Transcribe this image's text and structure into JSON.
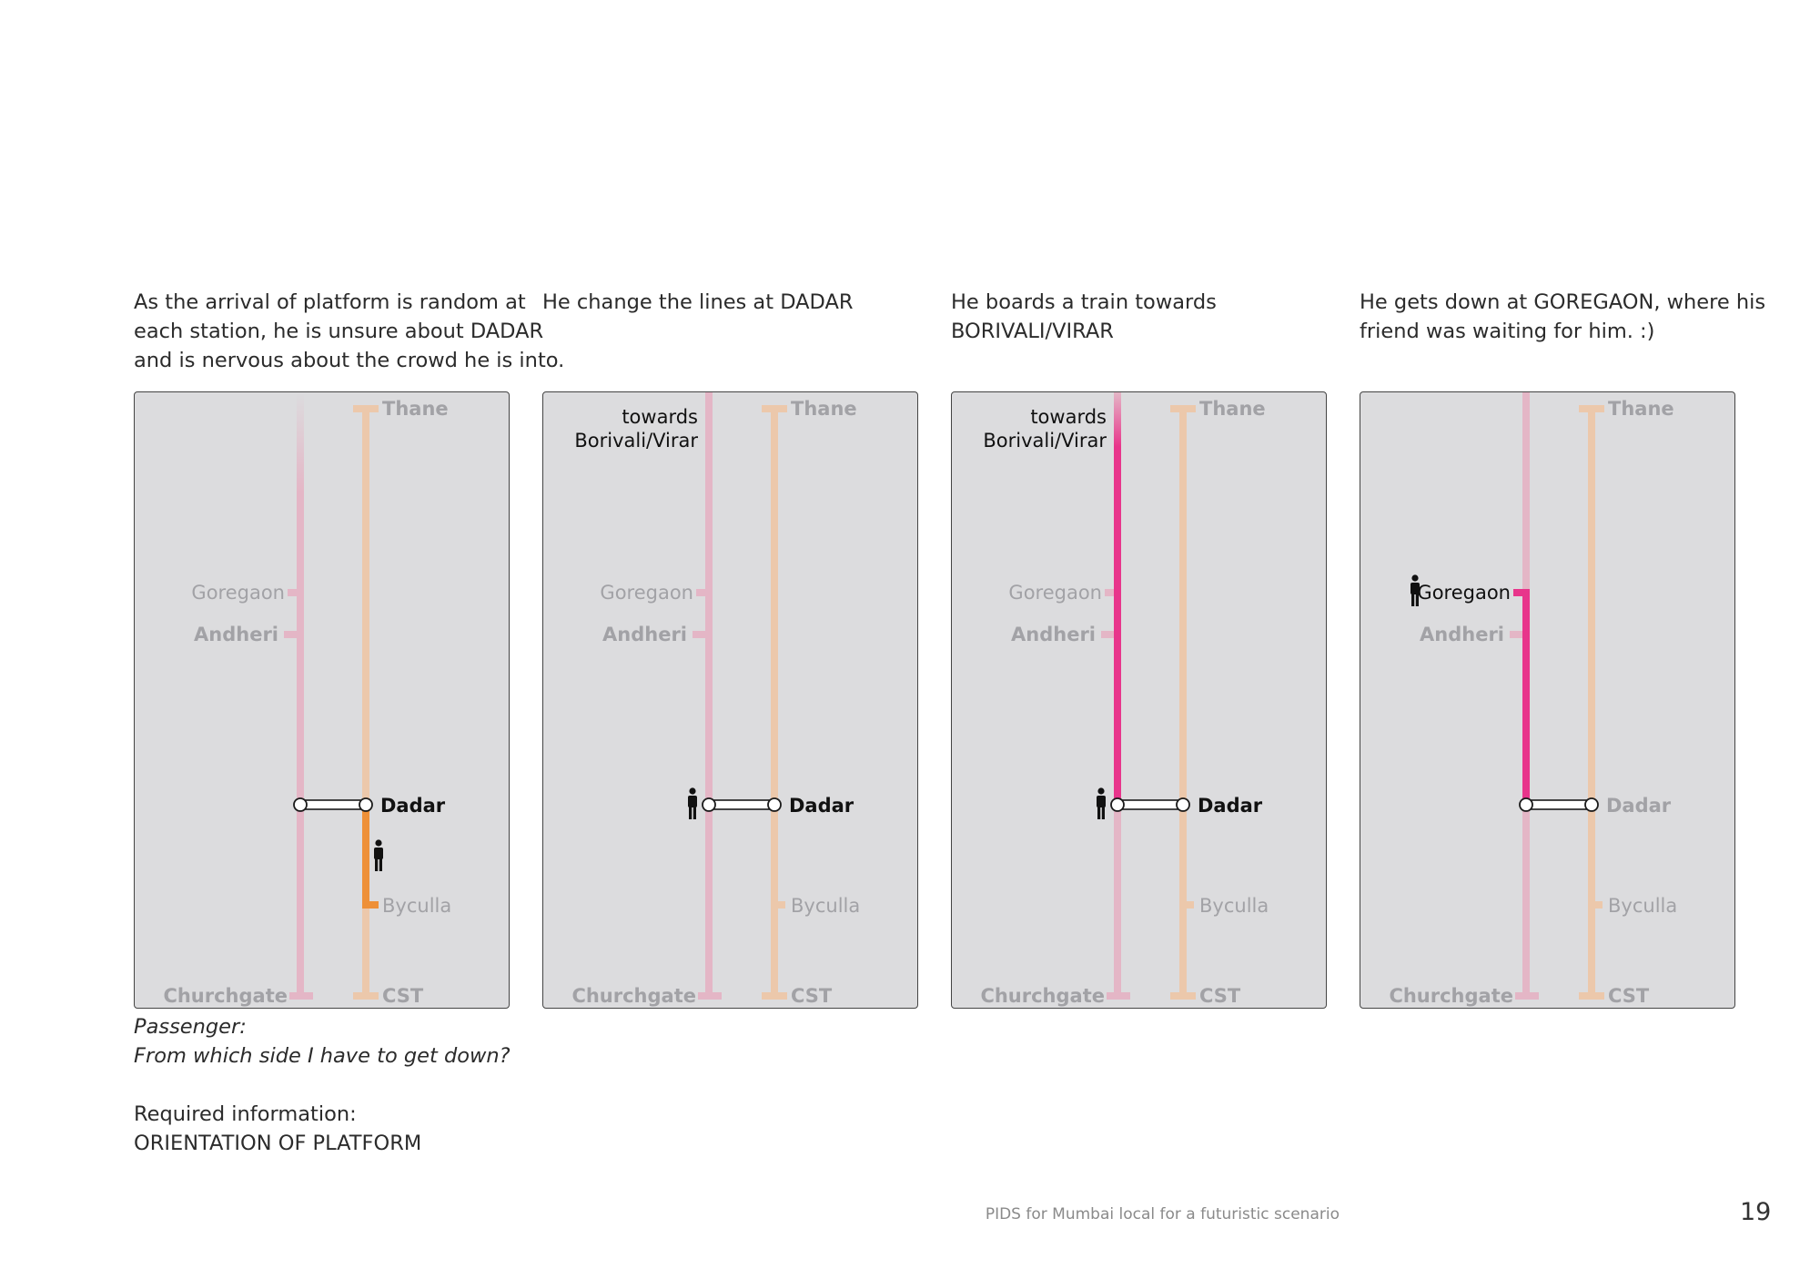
{
  "captions": [
    {
      "lines": [
        "As the arrival of platform is random at",
        "each station, he is unsure about DADAR",
        "and is nervous about the crowd he is into."
      ]
    },
    {
      "lines": [
        "He change the lines at DADAR"
      ]
    },
    {
      "lines": [
        "He boards a train towards",
        "BORIVALI/VIRAR"
      ]
    },
    {
      "lines": [
        "He gets down at GOREGAON, where his",
        "friend was waiting for him. :)"
      ]
    }
  ],
  "stations": {
    "thane": "Thane",
    "goregaon": "Goregaon",
    "andheri": "Andheri",
    "dadar": "Dadar",
    "byculla": "Byculla",
    "churchgate": "Churchgate",
    "cst": "CST"
  },
  "towards_label": [
    "towards",
    "Borivali/Virar"
  ],
  "panels": [
    {
      "id": "panel-1",
      "show_towards": false,
      "passenger_at": "central-between-dadar-byculla",
      "highlight": "central-dadar-byculla"
    },
    {
      "id": "panel-2",
      "show_towards": true,
      "passenger_at": "western-dadar",
      "highlight": "none"
    },
    {
      "id": "panel-3",
      "show_towards": true,
      "passenger_at": "western-dadar",
      "highlight": "western-north-from-dadar"
    },
    {
      "id": "panel-4",
      "show_towards": false,
      "passenger_at": "goregaon",
      "highlight": "western-dadar-goregaon"
    }
  ],
  "notes": {
    "question_label": "Passenger:",
    "question_text": "From which side I have to get down?",
    "required_label": "Required information:",
    "required_value": "ORIENTATION OF PLATFORM"
  },
  "colors": {
    "panel_bg": "#dcdcde",
    "western_line": "#e4b6c6",
    "central_line": "#ecc8ab",
    "western_active": "#e8358b",
    "central_active": "#ee9038",
    "faded_text": "#a2a2a6",
    "dark_text": "#111111"
  },
  "footer": {
    "title": "PIDS for Mumbai local for a futuristic scenario",
    "page": "19"
  }
}
